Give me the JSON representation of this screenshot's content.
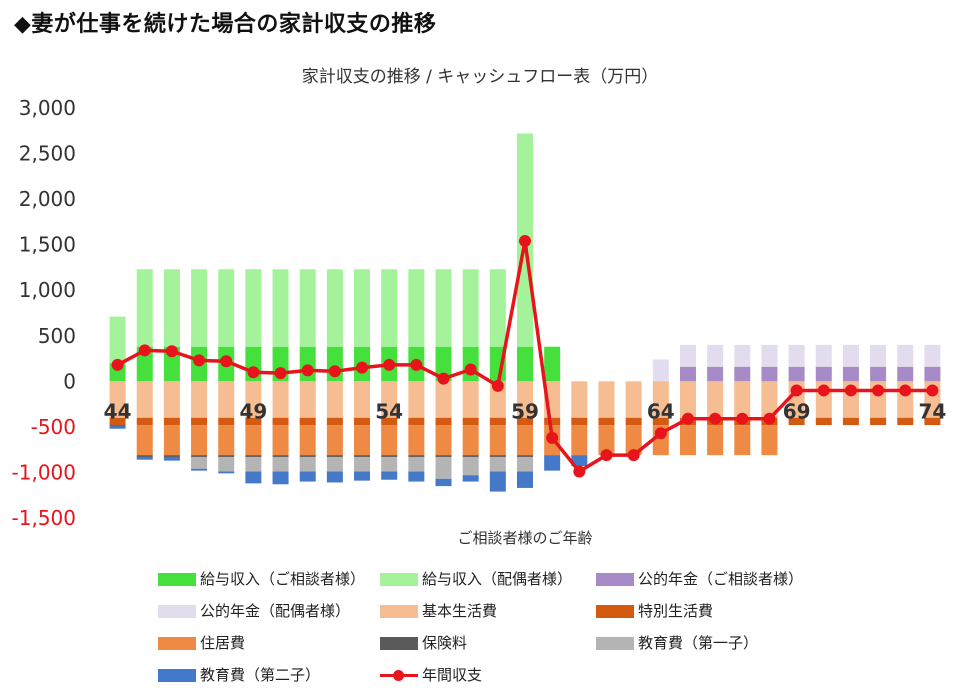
{
  "heading": "◆妻が仕事を続けた場合の家計収支の推移",
  "chart_data": {
    "type": "bar",
    "title": "家計収支の推移 / キャッシュフロー表（万円）",
    "xlabel": "ご相談者様のご年齢",
    "ylabel": "",
    "ylim": [
      -1500,
      3000
    ],
    "yticks": [
      3000,
      2500,
      2000,
      1500,
      1000,
      500,
      0,
      -500,
      -1000,
      -1500
    ],
    "ytick_labels": [
      "3,000",
      "2,500",
      "2,000",
      "1,500",
      "1,000",
      "500",
      "0",
      "-500",
      "-1,000",
      "-1,500"
    ],
    "categories": [
      44,
      45,
      46,
      47,
      48,
      49,
      50,
      51,
      52,
      53,
      54,
      55,
      56,
      57,
      58,
      59,
      60,
      61,
      62,
      63,
      64,
      65,
      66,
      67,
      68,
      69,
      70,
      71,
      72,
      73,
      74
    ],
    "labeled_ticks": [
      "44",
      "49",
      "54",
      "59",
      "64",
      "69",
      "74"
    ],
    "series": [
      {
        "name": "給与収入（ご相談者様）",
        "color": "#46e03c",
        "values": [
          200,
          380,
          380,
          380,
          380,
          380,
          380,
          380,
          380,
          380,
          380,
          380,
          380,
          380,
          380,
          380,
          380,
          0,
          0,
          0,
          0,
          0,
          0,
          0,
          0,
          0,
          0,
          0,
          0,
          0,
          0
        ]
      },
      {
        "name": "給与収入（配偶者様）",
        "color": "#a4f29a",
        "values": [
          510,
          850,
          850,
          850,
          850,
          850,
          850,
          850,
          850,
          850,
          850,
          850,
          850,
          850,
          850,
          2340,
          0,
          0,
          0,
          0,
          0,
          0,
          0,
          0,
          0,
          0,
          0,
          0,
          0,
          0,
          0
        ]
      },
      {
        "name": "公的年金（ご相談者様）",
        "color": "#a68bc6",
        "values": [
          0,
          0,
          0,
          0,
          0,
          0,
          0,
          0,
          0,
          0,
          0,
          0,
          0,
          0,
          0,
          0,
          0,
          0,
          0,
          0,
          0,
          160,
          160,
          160,
          160,
          160,
          160,
          160,
          160,
          160,
          160
        ]
      },
      {
        "name": "公的年金（配偶者様）",
        "color": "#e2dcee",
        "values": [
          0,
          0,
          0,
          0,
          0,
          0,
          0,
          0,
          0,
          0,
          0,
          0,
          0,
          0,
          0,
          0,
          0,
          0,
          0,
          0,
          240,
          240,
          240,
          240,
          240,
          240,
          240,
          240,
          240,
          240,
          240
        ]
      },
      {
        "name": "基本生活費",
        "color": "#f6bc92",
        "values": [
          -400,
          -400,
          -400,
          -400,
          -400,
          -400,
          -400,
          -400,
          -400,
          -400,
          -400,
          -400,
          -400,
          -400,
          -400,
          -400,
          -400,
          -400,
          -400,
          -400,
          -400,
          -400,
          -400,
          -400,
          -400,
          -400,
          -400,
          -400,
          -400,
          -400,
          -400
        ]
      },
      {
        "name": "特別生活費",
        "color": "#d45a12",
        "values": [
          -80,
          -80,
          -80,
          -80,
          -80,
          -80,
          -80,
          -80,
          -80,
          -80,
          -80,
          -80,
          -80,
          -80,
          -80,
          -80,
          -80,
          -80,
          -80,
          -80,
          -80,
          -80,
          -80,
          -80,
          -80,
          -80,
          -80,
          -80,
          -80,
          -80,
          -80
        ]
      },
      {
        "name": "住居費",
        "color": "#ee8a44",
        "values": [
          0,
          -330,
          -330,
          -330,
          -330,
          -330,
          -330,
          -330,
          -330,
          -330,
          -330,
          -330,
          -330,
          -330,
          -330,
          -330,
          -330,
          -330,
          -330,
          -330,
          -330,
          -330,
          -330,
          -330,
          -330,
          0,
          0,
          0,
          0,
          0,
          0
        ]
      },
      {
        "name": "保険料",
        "color": "#5a5a5a",
        "values": [
          -10,
          -20,
          -20,
          -20,
          -20,
          -20,
          -20,
          -20,
          -20,
          -20,
          -20,
          -20,
          -20,
          -20,
          -20,
          -20,
          0,
          0,
          0,
          0,
          0,
          0,
          0,
          0,
          0,
          0,
          0,
          0,
          0,
          0,
          0
        ]
      },
      {
        "name": "教育費（第一子）",
        "color": "#b4b4b4",
        "values": [
          0,
          0,
          0,
          -130,
          -160,
          -160,
          -160,
          -160,
          -160,
          -160,
          -160,
          -160,
          -240,
          -200,
          -160,
          -160,
          0,
          0,
          0,
          0,
          0,
          0,
          0,
          0,
          0,
          0,
          0,
          0,
          0,
          0,
          0
        ]
      },
      {
        "name": "教育費（第二子）",
        "color": "#4478c8",
        "values": [
          -30,
          -30,
          -40,
          -20,
          -20,
          -130,
          -140,
          -110,
          -120,
          -100,
          -90,
          -110,
          -80,
          -70,
          -220,
          -180,
          -170,
          -120,
          0,
          0,
          0,
          0,
          0,
          0,
          0,
          0,
          0,
          0,
          0,
          0,
          0
        ]
      }
    ],
    "line": {
      "name": "年間収支",
      "color": "#e8141c",
      "values": [
        180,
        340,
        330,
        230,
        220,
        100,
        90,
        120,
        110,
        150,
        180,
        180,
        30,
        130,
        -50,
        1540,
        -620,
        -990,
        -810,
        -810,
        -570,
        -410,
        -410,
        -410,
        -410,
        -100,
        -100,
        -100,
        -100,
        -100,
        -100
      ]
    }
  }
}
